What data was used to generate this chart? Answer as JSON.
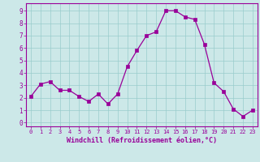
{
  "x": [
    0,
    1,
    2,
    3,
    4,
    5,
    6,
    7,
    8,
    9,
    10,
    11,
    12,
    13,
    14,
    15,
    16,
    17,
    18,
    19,
    20,
    21,
    22,
    23
  ],
  "y": [
    2.1,
    3.1,
    3.3,
    2.6,
    2.6,
    2.1,
    1.7,
    2.3,
    1.5,
    2.3,
    4.5,
    5.8,
    7.0,
    7.3,
    9.0,
    9.0,
    8.5,
    8.3,
    6.3,
    3.2,
    2.5,
    1.1,
    0.5,
    1.0
  ],
  "line_color": "#990099",
  "marker": "s",
  "marker_size": 2.2,
  "bg_color": "#cce8e8",
  "grid_color": "#99cccc",
  "xlabel": "Windchill (Refroidissement éolien,°C)",
  "ylabel_ticks": [
    0,
    1,
    2,
    3,
    4,
    5,
    6,
    7,
    8,
    9
  ],
  "xtick_labels": [
    "0",
    "1",
    "2",
    "3",
    "4",
    "5",
    "6",
    "7",
    "8",
    "9",
    "10",
    "11",
    "12",
    "13",
    "14",
    "15",
    "16",
    "17",
    "18",
    "19",
    "20",
    "21",
    "22",
    "23"
  ],
  "xlim": [
    -0.5,
    23.5
  ],
  "ylim": [
    -0.3,
    9.6
  ],
  "xlabel_color": "#990099",
  "tick_color": "#990099",
  "spine_color": "#990099",
  "tick_fontsize": 5.0,
  "xlabel_fontsize": 6.0
}
